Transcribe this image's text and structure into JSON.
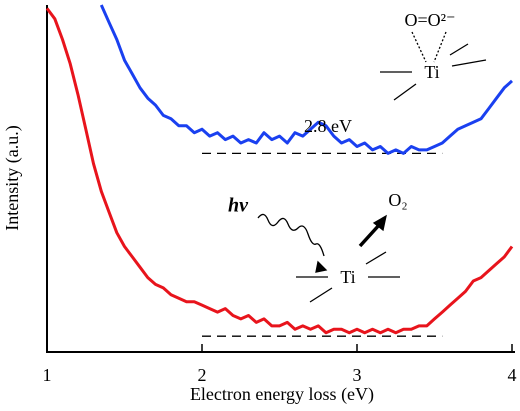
{
  "chart_data": {
    "type": "line",
    "x_label": "Electron energy loss (eV)",
    "y_label": "Intensity (a.u.)",
    "xlim": [
      1,
      4
    ],
    "xticks": [
      1,
      2,
      3,
      4
    ],
    "ylim": [
      0,
      100
    ],
    "series": [
      {
        "color": "#e8141c",
        "x": [
          1.0,
          1.05,
          1.1,
          1.15,
          1.2,
          1.25,
          1.3,
          1.35,
          1.4,
          1.45,
          1.5,
          1.55,
          1.6,
          1.65,
          1.7,
          1.75,
          1.8,
          1.85,
          1.9,
          1.95,
          2.0,
          2.05,
          2.1,
          2.15,
          2.2,
          2.25,
          2.3,
          2.35,
          2.4,
          2.45,
          2.5,
          2.55,
          2.6,
          2.65,
          2.7,
          2.75,
          2.8,
          2.85,
          2.9,
          2.95,
          3.0,
          3.05,
          3.1,
          3.15,
          3.2,
          3.25,
          3.3,
          3.35,
          3.4,
          3.45,
          3.5,
          3.55,
          3.6,
          3.65,
          3.7,
          3.75,
          3.8,
          3.85,
          3.9,
          3.95,
          4.0
        ],
        "values": [
          99,
          96,
          90,
          83,
          74,
          64,
          54,
          46,
          40,
          34,
          30,
          27,
          24,
          21,
          19,
          18,
          16,
          15,
          14,
          14,
          13,
          12,
          11,
          12,
          10,
          9,
          10,
          8,
          9,
          7,
          7,
          8,
          6,
          7,
          6,
          7,
          5,
          6,
          6,
          5,
          6,
          5,
          6,
          5,
          6,
          5,
          6,
          6,
          7,
          7,
          9,
          11,
          13,
          15,
          17,
          20,
          21,
          23,
          25,
          27,
          30
        ]
      },
      {
        "color": "#1a40f0",
        "x": [
          1.35,
          1.4,
          1.45,
          1.5,
          1.55,
          1.6,
          1.65,
          1.7,
          1.75,
          1.8,
          1.85,
          1.9,
          1.95,
          2.0,
          2.05,
          2.1,
          2.15,
          2.2,
          2.25,
          2.3,
          2.35,
          2.4,
          2.45,
          2.5,
          2.55,
          2.6,
          2.65,
          2.7,
          2.75,
          2.8,
          2.85,
          2.9,
          2.95,
          3.0,
          3.05,
          3.1,
          3.15,
          3.2,
          3.25,
          3.3,
          3.35,
          3.4,
          3.45,
          3.5,
          3.55,
          3.6,
          3.65,
          3.7,
          3.75,
          3.8,
          3.85,
          3.9,
          3.95,
          4.0
        ],
        "values": [
          100,
          95,
          90,
          84,
          80,
          76,
          73,
          71,
          68,
          67,
          65,
          65,
          63,
          64,
          62,
          63,
          61,
          62,
          60,
          61,
          60,
          63,
          61,
          62,
          60,
          63,
          62,
          64,
          66,
          65,
          62,
          60,
          61,
          59,
          60,
          58,
          59,
          57,
          58,
          57,
          59,
          58,
          58,
          59,
          60,
          62,
          64,
          65,
          66,
          67,
          70,
          73,
          76,
          78
        ]
      }
    ],
    "reference_lines": [
      {
        "y": 57,
        "x": [
          2,
          3.55
        ]
      },
      {
        "y": 4,
        "x": [
          2,
          3.55
        ]
      }
    ],
    "annotations": {
      "gap": "2.8 eV",
      "photon": "hν",
      "oxygen": "O₂",
      "ti_lower": "Ti",
      "peroxo": "O=O²⁻",
      "ti_upper": "Ti"
    }
  }
}
